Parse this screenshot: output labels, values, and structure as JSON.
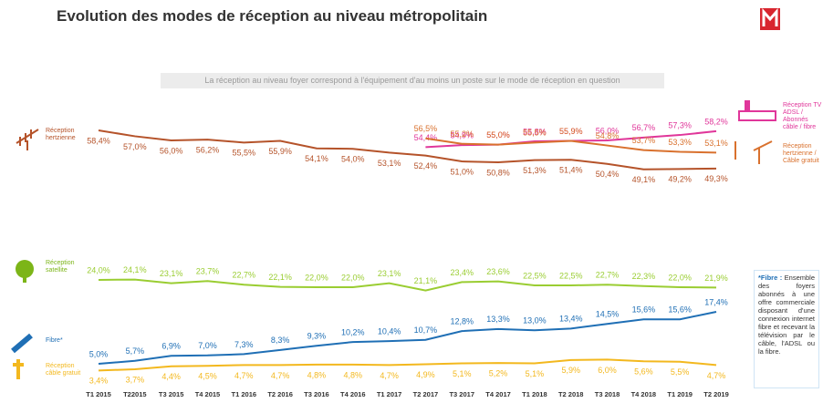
{
  "chart_data": {
    "type": "line",
    "title": "Evolution des modes de réception au niveau métropolitain",
    "subtitle": "La réception au niveau foyer correspond à l'équipement d'au moins un poste sur le mode de réception en question",
    "footnote_title": "*Fibre :",
    "footnote": "Ensemble des foyers abonnés à une offre commerciale disposant d'une connexion internet fibre et recevant la télévision par le câble, l'ADSL ou la fibre.",
    "categories": [
      "T1 2015",
      "T22015",
      "T3 2015",
      "T4 2015",
      "T1 2016",
      "T2 2016",
      "T3 2016",
      "T4 2016",
      "T1 2017",
      "T2 2017",
      "T3 2017",
      "T4 2017",
      "T1 2018",
      "T2 2018",
      "T3 2018",
      "T4 2018",
      "T1 2019",
      "T2 2019"
    ],
    "series": [
      {
        "name": "Réception hertzienne",
        "color": "#b5532a",
        "values": [
          58.4,
          57.0,
          56.0,
          56.2,
          55.5,
          55.9,
          54.1,
          54.0,
          53.1,
          52.4,
          51.0,
          50.8,
          51.3,
          51.4,
          50.4,
          49.1,
          49.2,
          49.3
        ],
        "value_labels": [
          "58,4%",
          "57,0%",
          "56,0%",
          "56,2%",
          "55,5%",
          "55,9%",
          "54,1%",
          "54,0%",
          "53,1%",
          "52,4%",
          "51,0%",
          "50,8%",
          "51,3%",
          "51,4%",
          "50,4%",
          "49,1%",
          "49,2%",
          "49,3%"
        ]
      },
      {
        "name": "Réception TV ADSL / Abonnés câble / fibre",
        "color": "#e0369a",
        "values": [
          null,
          null,
          null,
          null,
          null,
          null,
          null,
          null,
          null,
          54.4,
          54.9,
          55.0,
          55.8,
          55.9,
          56.0,
          56.7,
          57.3,
          58.2
        ],
        "value_labels": [
          null,
          null,
          null,
          null,
          null,
          null,
          null,
          null,
          null,
          "54,4%",
          "54,9%",
          "55,0%",
          "55,8%",
          "55,9%",
          "56,0%",
          "56,7%",
          "57,3%",
          "58,2%"
        ]
      },
      {
        "name": "Réception hertzienne / Câble gratuit",
        "color": "#d9712e",
        "values": [
          null,
          null,
          null,
          null,
          null,
          null,
          null,
          null,
          null,
          56.5,
          55.2,
          55.0,
          55.5,
          55.9,
          54.8,
          53.7,
          53.3,
          53.1
        ],
        "value_labels": [
          null,
          null,
          null,
          null,
          null,
          null,
          null,
          null,
          null,
          "56,5%",
          "55,2%",
          "55,0%",
          "55,5%",
          "55,9%",
          "54,8%",
          "53,7%",
          "53,3%",
          "53,1%"
        ]
      },
      {
        "name": "Réception satellite",
        "color": "#9acd32",
        "values": [
          24.0,
          24.1,
          23.1,
          23.7,
          22.7,
          22.1,
          22.0,
          22.0,
          23.1,
          21.1,
          23.4,
          23.6,
          22.5,
          22.5,
          22.7,
          22.3,
          22.0,
          21.9
        ],
        "value_labels": [
          "24,0%",
          "24,1%",
          "23,1%",
          "23,7%",
          "22,7%",
          "22,1%",
          "22,0%",
          "22,0%",
          "23,1%",
          "21,1%",
          "23,4%",
          "23,6%",
          "22,5%",
          "22,5%",
          "22,7%",
          "22,3%",
          "22,0%",
          "21,9%"
        ]
      },
      {
        "name": "Fibre*",
        "color": "#1f6fb5",
        "values": [
          5.0,
          5.7,
          6.9,
          7.0,
          7.3,
          8.3,
          9.3,
          10.2,
          10.4,
          10.7,
          12.8,
          13.3,
          13.0,
          13.4,
          14.5,
          15.6,
          15.6,
          17.4
        ],
        "value_labels": [
          "5,0%",
          "5,7%",
          "6,9%",
          "7,0%",
          "7,3%",
          "8,3%",
          "9,3%",
          "10,2%",
          "10,4%",
          "10,7%",
          "12,8%",
          "13,3%",
          "13,0%",
          "13,4%",
          "14,5%",
          "15,6%",
          "15,6%",
          "17,4%"
        ]
      },
      {
        "name": "Réception câble gratuit",
        "color": "#f3b81e",
        "values": [
          3.4,
          3.7,
          4.4,
          4.5,
          4.7,
          4.7,
          4.8,
          4.8,
          4.7,
          4.9,
          5.1,
          5.2,
          5.1,
          5.9,
          6.0,
          5.6,
          5.5,
          4.7
        ],
        "value_labels": [
          "3,4%",
          "3,7%",
          "4,4%",
          "4,5%",
          "4,7%",
          "4,7%",
          "4,8%",
          "4,8%",
          "4,7%",
          "4,9%",
          "5,1%",
          "5,2%",
          "5,1%",
          "5,9%",
          "6,0%",
          "5,6%",
          "5,5%",
          "4,7%"
        ]
      }
    ]
  }
}
